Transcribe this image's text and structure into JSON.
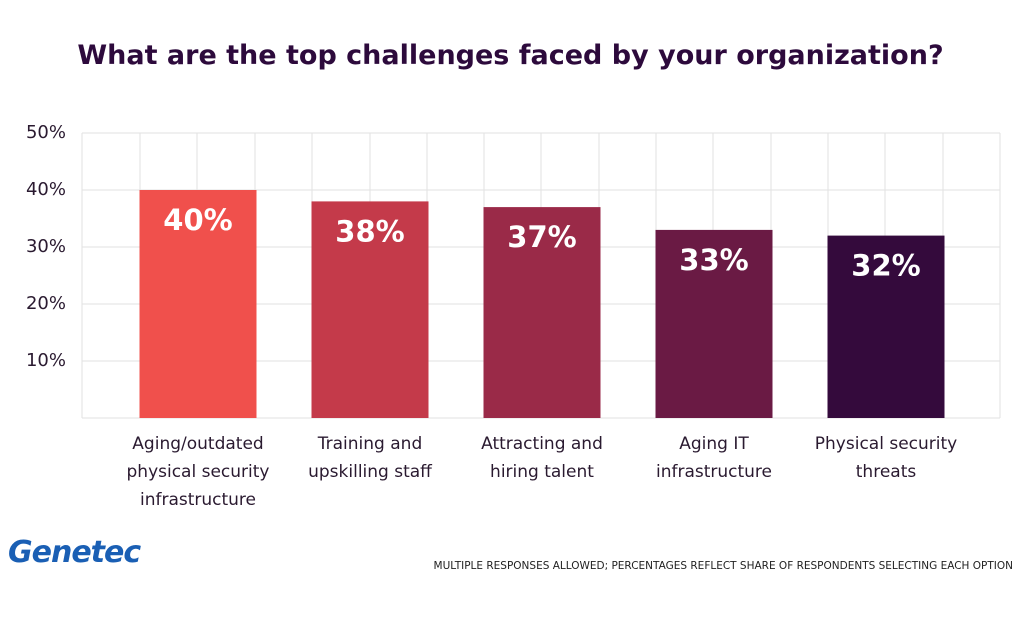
{
  "chart_data": {
    "type": "bar",
    "title": "What are the top challenges faced by your organization?",
    "categories": [
      "Aging/outdated physical security infrastructure",
      "Training and upskilling staff",
      "Attracting and hiring talent",
      "Aging IT infrastructure",
      "Physical security threats"
    ],
    "values": [
      40,
      38,
      37,
      33,
      32
    ],
    "value_labels": [
      "40%",
      "38%",
      "37%",
      "33%",
      "32%"
    ],
    "colors": [
      "#f0504c",
      "#c43a4a",
      "#9a2a48",
      "#6a1a44",
      "#340a3c"
    ],
    "ylim": [
      0,
      50
    ],
    "yticks": [
      {
        "value": 10,
        "label": "10%"
      },
      {
        "value": 20,
        "label": "20%"
      },
      {
        "value": 30,
        "label": "30%"
      },
      {
        "value": 40,
        "label": "40%"
      },
      {
        "value": 50,
        "label": "50%"
      }
    ],
    "grid": true
  },
  "footer": {
    "logo": "Genetec",
    "note": "MULTIPLE RESPONSES ALLOWED; PERCENTAGES REFLECT SHARE OF RESPONDENTS SELECTING EACH OPTION"
  }
}
